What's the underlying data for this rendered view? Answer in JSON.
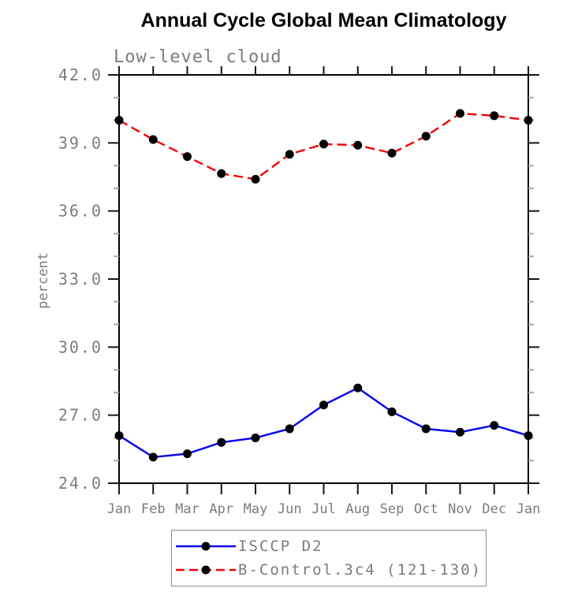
{
  "title": "Annual Cycle Global Mean Climatology",
  "subtitle": "Low-level cloud",
  "chart_data": {
    "type": "line",
    "categories": [
      "Jan",
      "Feb",
      "Mar",
      "Apr",
      "May",
      "Jun",
      "Jul",
      "Aug",
      "Sep",
      "Oct",
      "Nov",
      "Dec",
      "Jan"
    ],
    "ylabel": "percent",
    "xlabel": "",
    "ylim": [
      24.0,
      42.0
    ],
    "ytick_major_step": 3.0,
    "ytick_minor_step": 1.0,
    "ytick_label_format": "one_decimal",
    "grid": false,
    "legend_position": "bottom",
    "marker": "filled-circle",
    "marker_color": "#000000",
    "series": [
      {
        "name": "ISCCP D2",
        "color": "#0000ee",
        "line_style": "solid",
        "values": [
          26.1,
          25.15,
          25.3,
          25.8,
          26.0,
          26.4,
          27.45,
          28.2,
          27.15,
          26.4,
          26.25,
          26.55,
          26.1
        ]
      },
      {
        "name": "B-Control.3c4 (121-130)",
        "color": "#f20000",
        "line_style": "dashed",
        "values": [
          40.0,
          39.15,
          38.4,
          37.65,
          37.4,
          38.5,
          38.95,
          38.9,
          38.55,
          39.3,
          40.3,
          40.2,
          40.0
        ]
      }
    ]
  }
}
